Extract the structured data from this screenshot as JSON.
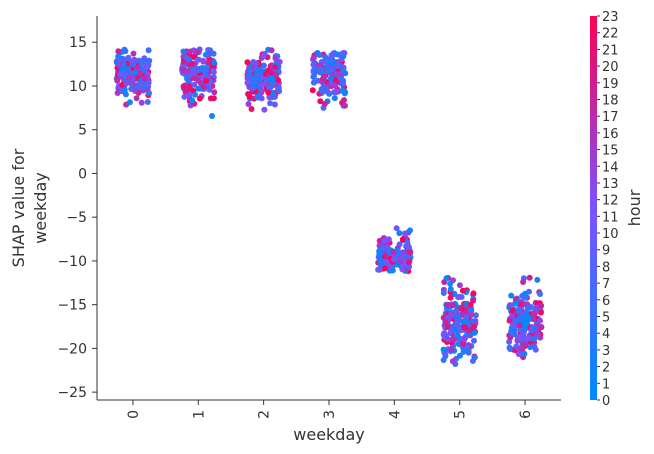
{
  "chart_data": {
    "type": "scatter",
    "title": "",
    "xlabel": "weekday",
    "ylabel_lines": [
      "SHAP value for",
      "weekday"
    ],
    "x_ticks": [
      0,
      1,
      2,
      3,
      4,
      5,
      6
    ],
    "x_tick_labels": [
      "0",
      "1",
      "2",
      "3",
      "4",
      "5",
      "6"
    ],
    "y_ticks": [
      15,
      10,
      5,
      0,
      -5,
      -10,
      -15,
      -20,
      -25
    ],
    "y_tick_labels": [
      "15",
      "10",
      "5",
      "0",
      "−5",
      "−10",
      "−15",
      "−20",
      "−25"
    ],
    "xlim": [
      -0.55,
      6.55
    ],
    "ylim": [
      -25.9,
      18
    ],
    "grid": false,
    "jitter": "horizontal jitter around each integer weekday",
    "colorbar": {
      "label": "hour",
      "min": 0,
      "max": 23,
      "tick_labels": [
        "0",
        "1",
        "2",
        "3",
        "4",
        "5",
        "6",
        "7",
        "8",
        "9",
        "10",
        "11",
        "12",
        "13",
        "14",
        "15",
        "16",
        "17",
        "18",
        "19",
        "20",
        "21",
        "22",
        "23"
      ],
      "color_low": "#008afb",
      "color_mid": "#7c52ff",
      "color_high": "#ff0052"
    },
    "groups": [
      {
        "weekday": 0,
        "y_min": 7.4,
        "y_max": 14.2,
        "y_mean": 11.2,
        "count": 190
      },
      {
        "weekday": 1,
        "y_min": 6.3,
        "y_max": 14.2,
        "y_mean": 11.3,
        "count": 150
      },
      {
        "weekday": 2,
        "y_min": 7.2,
        "y_max": 14.2,
        "y_mean": 11.0,
        "count": 170
      },
      {
        "weekday": 3,
        "y_min": 6.4,
        "y_max": 13.8,
        "y_mean": 11.4,
        "count": 160
      },
      {
        "weekday": 4,
        "y_min": -11.2,
        "y_max": -5.8,
        "y_mean": -9.2,
        "count": 150
      },
      {
        "weekday": 5,
        "y_min": -22.0,
        "y_max": -11.4,
        "y_mean": -17.3,
        "count": 200
      },
      {
        "weekday": 6,
        "y_min": -21.2,
        "y_max": -11.6,
        "y_mean": -17.0,
        "count": 190
      }
    ]
  }
}
